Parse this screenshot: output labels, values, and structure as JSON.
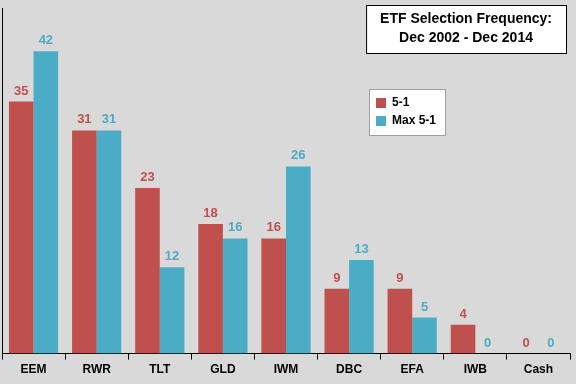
{
  "chart_data": {
    "type": "bar",
    "title": [
      "ETF Selection Frequency:",
      "Dec 2002 - Dec 2014"
    ],
    "categories": [
      "EEM",
      "RWR",
      "TLT",
      "GLD",
      "IWM",
      "DBC",
      "EFA",
      "IWB",
      "Cash"
    ],
    "series": [
      {
        "name": "5-1",
        "color": "#c0504d",
        "values": [
          35,
          31,
          23,
          18,
          16,
          9,
          9,
          4,
          0
        ]
      },
      {
        "name": "Max 5-1",
        "color": "#4bacc6",
        "values": [
          42,
          31,
          12,
          16,
          26,
          13,
          5,
          0,
          0
        ]
      }
    ],
    "ylim": [
      0,
      48
    ],
    "grid": false,
    "legend": "upper right",
    "data_labels": true,
    "tick_labels": "x"
  }
}
